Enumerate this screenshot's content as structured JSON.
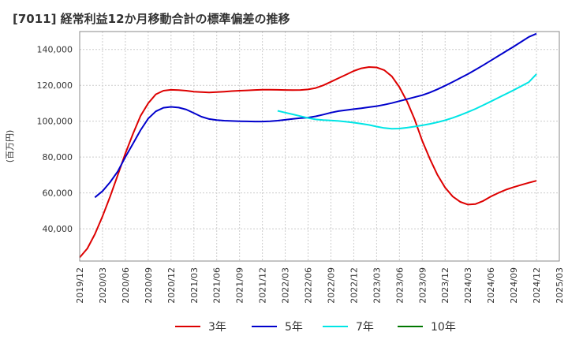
{
  "title": "[7011]  経常利益12か月移動合計の標準偏差の推移",
  "chart_data": {
    "type": "line",
    "ylabel": "(百万円)",
    "ylim": [
      22000,
      150000
    ],
    "yticks": [
      40000,
      60000,
      80000,
      100000,
      120000,
      140000
    ],
    "ytick_labels": [
      "40,000",
      "60,000",
      "80,000",
      "100,000",
      "120,000",
      "140,000"
    ],
    "xlim": [
      "2019-12",
      "2025-03"
    ],
    "xtick_labels": [
      "2019/12",
      "2020/03",
      "2020/06",
      "2020/09",
      "2020/12",
      "2021/03",
      "2021/06",
      "2021/09",
      "2021/12",
      "2022/03",
      "2022/06",
      "2022/09",
      "2022/12",
      "2023/03",
      "2023/06",
      "2023/09",
      "2023/12",
      "2024/03",
      "2024/06",
      "2024/09",
      "2024/12",
      "2025/03"
    ],
    "grid": true,
    "legend_position": "bottom",
    "series": [
      {
        "name": "3年",
        "color": "#dd0000",
        "points": [
          [
            "2019-12",
            24000
          ],
          [
            "2020-01",
            29000
          ],
          [
            "2020-02",
            37000
          ],
          [
            "2020-03",
            47000
          ],
          [
            "2020-04",
            58000
          ],
          [
            "2020-05",
            70000
          ],
          [
            "2020-06",
            82000
          ],
          [
            "2020-07",
            93000
          ],
          [
            "2020-08",
            103000
          ],
          [
            "2020-09",
            110000
          ],
          [
            "2020-10",
            115000
          ],
          [
            "2020-11",
            117000
          ],
          [
            "2020-12",
            117500
          ],
          [
            "2021-01",
            117300
          ],
          [
            "2021-02",
            117000
          ],
          [
            "2021-03",
            116500
          ],
          [
            "2021-04",
            116200
          ],
          [
            "2021-05",
            116000
          ],
          [
            "2021-06",
            116200
          ],
          [
            "2021-07",
            116500
          ],
          [
            "2021-08",
            116800
          ],
          [
            "2021-09",
            117000
          ],
          [
            "2021-10",
            117200
          ],
          [
            "2021-11",
            117400
          ],
          [
            "2021-12",
            117600
          ],
          [
            "2022-01",
            117600
          ],
          [
            "2022-02",
            117500
          ],
          [
            "2022-03",
            117400
          ],
          [
            "2022-04",
            117300
          ],
          [
            "2022-05",
            117400
          ],
          [
            "2022-06",
            117700
          ],
          [
            "2022-07",
            118500
          ],
          [
            "2022-08",
            120000
          ],
          [
            "2022-09",
            122000
          ],
          [
            "2022-10",
            124000
          ],
          [
            "2022-11",
            126000
          ],
          [
            "2022-12",
            128000
          ],
          [
            "2023-01",
            129500
          ],
          [
            "2023-02",
            130200
          ],
          [
            "2023-03",
            130000
          ],
          [
            "2023-04",
            128500
          ],
          [
            "2023-05",
            125000
          ],
          [
            "2023-06",
            119000
          ],
          [
            "2023-07",
            111000
          ],
          [
            "2023-08",
            101000
          ],
          [
            "2023-09",
            89000
          ],
          [
            "2023-10",
            79000
          ],
          [
            "2023-11",
            70000
          ],
          [
            "2023-12",
            63000
          ],
          [
            "2024-01",
            58000
          ],
          [
            "2024-02",
            55000
          ],
          [
            "2024-03",
            53500
          ],
          [
            "2024-04",
            53800
          ],
          [
            "2024-05",
            55500
          ],
          [
            "2024-06",
            58000
          ],
          [
            "2024-07",
            60000
          ],
          [
            "2024-08",
            61800
          ],
          [
            "2024-09",
            63200
          ],
          [
            "2024-10",
            64500
          ],
          [
            "2024-11",
            65700
          ],
          [
            "2024-12",
            66800
          ]
        ]
      },
      {
        "name": "5年",
        "color": "#0000cc",
        "points": [
          [
            "2020-02",
            57500
          ],
          [
            "2020-03",
            61000
          ],
          [
            "2020-04",
            66000
          ],
          [
            "2020-05",
            72000
          ],
          [
            "2020-06",
            80000
          ],
          [
            "2020-07",
            87500
          ],
          [
            "2020-08",
            95000
          ],
          [
            "2020-09",
            101500
          ],
          [
            "2020-10",
            105500
          ],
          [
            "2020-11",
            107500
          ],
          [
            "2020-12",
            108000
          ],
          [
            "2021-01",
            107600
          ],
          [
            "2021-02",
            106500
          ],
          [
            "2021-03",
            104500
          ],
          [
            "2021-04",
            102500
          ],
          [
            "2021-05",
            101200
          ],
          [
            "2021-06",
            100600
          ],
          [
            "2021-07",
            100300
          ],
          [
            "2021-08",
            100100
          ],
          [
            "2021-09",
            100000
          ],
          [
            "2021-10",
            99900
          ],
          [
            "2021-11",
            99800
          ],
          [
            "2021-12",
            99800
          ],
          [
            "2022-01",
            100000
          ],
          [
            "2022-02",
            100300
          ],
          [
            "2022-03",
            100800
          ],
          [
            "2022-04",
            101300
          ],
          [
            "2022-05",
            101700
          ],
          [
            "2022-06",
            102000
          ],
          [
            "2022-07",
            102700
          ],
          [
            "2022-08",
            103700
          ],
          [
            "2022-09",
            104800
          ],
          [
            "2022-10",
            105600
          ],
          [
            "2022-11",
            106200
          ],
          [
            "2022-12",
            106700
          ],
          [
            "2023-01",
            107200
          ],
          [
            "2023-02",
            107800
          ],
          [
            "2023-03",
            108400
          ],
          [
            "2023-04",
            109200
          ],
          [
            "2023-05",
            110100
          ],
          [
            "2023-06",
            111200
          ],
          [
            "2023-07",
            112300
          ],
          [
            "2023-08",
            113400
          ],
          [
            "2023-09",
            114500
          ],
          [
            "2023-10",
            116000
          ],
          [
            "2023-11",
            117800
          ],
          [
            "2023-12",
            119800
          ],
          [
            "2024-01",
            121900
          ],
          [
            "2024-02",
            124100
          ],
          [
            "2024-03",
            126300
          ],
          [
            "2024-04",
            128700
          ],
          [
            "2024-05",
            131200
          ],
          [
            "2024-06",
            133800
          ],
          [
            "2024-07",
            136400
          ],
          [
            "2024-08",
            139000
          ],
          [
            "2024-09",
            141600
          ],
          [
            "2024-10",
            144300
          ],
          [
            "2024-11",
            147000
          ],
          [
            "2024-12",
            148800
          ]
        ]
      },
      {
        "name": "7年",
        "color": "#00e5e5",
        "points": [
          [
            "2022-02",
            105800
          ],
          [
            "2022-03",
            104800
          ],
          [
            "2022-04",
            103800
          ],
          [
            "2022-05",
            102800
          ],
          [
            "2022-06",
            101800
          ],
          [
            "2022-07",
            101000
          ],
          [
            "2022-08",
            100600
          ],
          [
            "2022-09",
            100400
          ],
          [
            "2022-10",
            100100
          ],
          [
            "2022-11",
            99700
          ],
          [
            "2022-12",
            99200
          ],
          [
            "2023-01",
            98600
          ],
          [
            "2023-02",
            97900
          ],
          [
            "2023-03",
            97000
          ],
          [
            "2023-04",
            96200
          ],
          [
            "2023-05",
            95800
          ],
          [
            "2023-06",
            95900
          ],
          [
            "2023-07",
            96400
          ],
          [
            "2023-08",
            97000
          ],
          [
            "2023-09",
            97700
          ],
          [
            "2023-10",
            98500
          ],
          [
            "2023-11",
            99400
          ],
          [
            "2023-12",
            100500
          ],
          [
            "2024-01",
            101900
          ],
          [
            "2024-02",
            103400
          ],
          [
            "2024-03",
            105100
          ],
          [
            "2024-04",
            106900
          ],
          [
            "2024-05",
            108900
          ],
          [
            "2024-06",
            111000
          ],
          [
            "2024-07",
            113100
          ],
          [
            "2024-08",
            115200
          ],
          [
            "2024-09",
            117300
          ],
          [
            "2024-10",
            119500
          ],
          [
            "2024-11",
            121800
          ],
          [
            "2024-12",
            126300
          ]
        ]
      },
      {
        "name": "10年",
        "color": "#007700",
        "points": []
      }
    ]
  }
}
